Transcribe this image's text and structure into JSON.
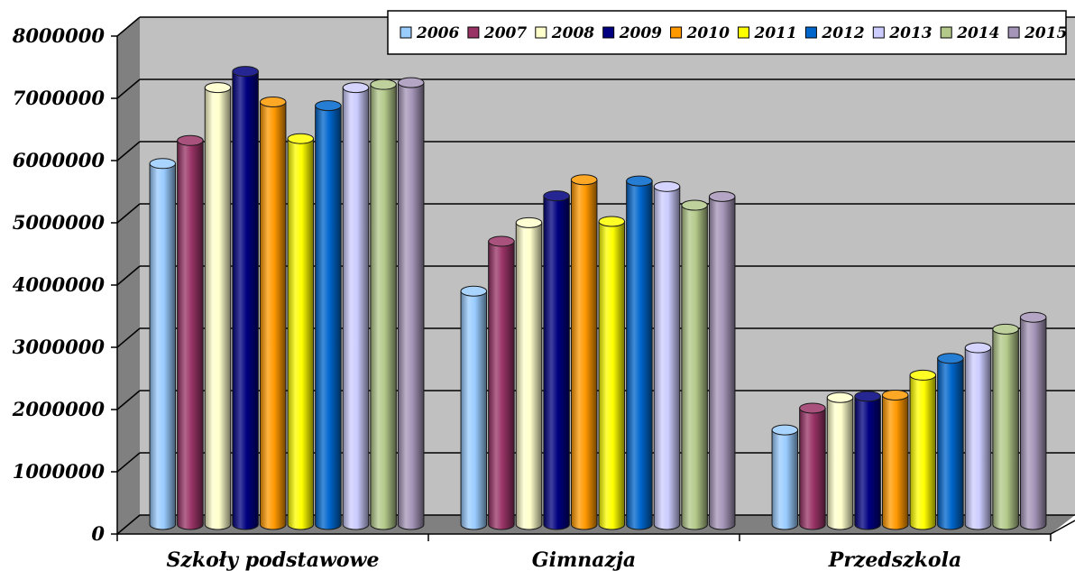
{
  "chart_data": {
    "type": "bar",
    "style": "3d-cylinder",
    "categories": [
      "Szkoły podstawowe",
      "Gimnazja",
      "Przedszkola"
    ],
    "series": [
      {
        "name": "2006",
        "color": "#99ccff",
        "values": [
          5800000,
          3750000,
          1520000
        ]
      },
      {
        "name": "2007",
        "color": "#993366",
        "values": [
          6170000,
          4550000,
          1870000
        ]
      },
      {
        "name": "2008",
        "color": "#ffffcc",
        "values": [
          7020000,
          4850000,
          2040000
        ]
      },
      {
        "name": "2009",
        "color": "#000080",
        "values": [
          7280000,
          5280000,
          2060000
        ]
      },
      {
        "name": "2010",
        "color": "#ff9900",
        "values": [
          6790000,
          5540000,
          2080000
        ]
      },
      {
        "name": "2011",
        "color": "#ffff00",
        "values": [
          6200000,
          4870000,
          2400000
        ]
      },
      {
        "name": "2012",
        "color": "#0066cc",
        "values": [
          6730000,
          5520000,
          2670000
        ]
      },
      {
        "name": "2013",
        "color": "#ccccff",
        "values": [
          7020000,
          5430000,
          2840000
        ]
      },
      {
        "name": "2014",
        "color": "#b3c98a",
        "values": [
          7070000,
          5130000,
          3140000
        ]
      },
      {
        "name": "2015",
        "color": "#a595b8",
        "values": [
          7100000,
          5270000,
          3330000
        ]
      }
    ],
    "yticks": [
      "0",
      "1000000",
      "2000000",
      "3000000",
      "4000000",
      "5000000",
      "6000000",
      "7000000",
      "8000000"
    ],
    "ylim": [
      0,
      8000000
    ],
    "grid": true,
    "legend_position": "top-right",
    "wall_color": "#c0c0c0",
    "floor_color": "#808080",
    "side_wall_color": "#808080"
  }
}
